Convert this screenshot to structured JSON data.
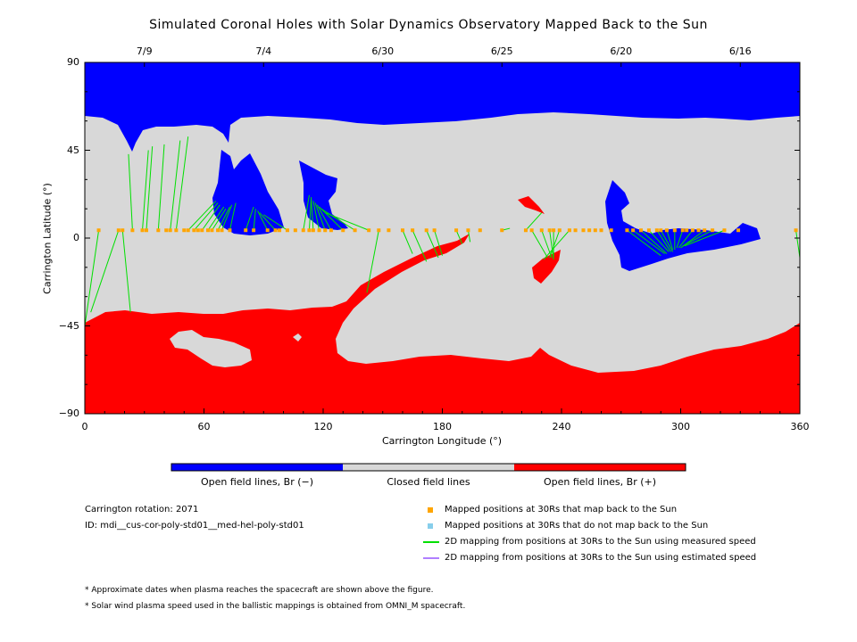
{
  "chart_data": {
    "type": "map",
    "title": "Simulated Coronal Holes with Solar Dynamics Observatory Mapped Back to the Sun",
    "xlabel": "Carrington Longitude (°)",
    "ylabel": "Carrington Latitude (°)",
    "xlim": [
      0,
      360
    ],
    "ylim": [
      -90,
      90
    ],
    "x_ticks": [
      "0",
      "60",
      "120",
      "180",
      "240",
      "300",
      "360"
    ],
    "y_ticks": [
      "90",
      "45",
      "0",
      "-45",
      "-90"
    ],
    "top_date_labels": [
      {
        "label": "7/9",
        "longitude": 30
      },
      {
        "label": "7/4",
        "longitude": 90
      },
      {
        "label": "6/30",
        "longitude": 150
      },
      {
        "label": "6/25",
        "longitude": 210
      },
      {
        "label": "6/20",
        "longitude": 270
      },
      {
        "label": "6/16",
        "longitude": 330
      }
    ],
    "colors": {
      "open_negative": "#0000ff",
      "closed": "#d8d8d8",
      "open_positive": "#ff0000",
      "mapped_point": "#ffa500",
      "unmapped_point": "#87ceeb",
      "measured_line": "#00e000",
      "estimated_line": "#b07fff"
    },
    "mapped_positions_lon": [
      7,
      17,
      19,
      24,
      29,
      31,
      37,
      41,
      43,
      46,
      50,
      52,
      55,
      57,
      59,
      62,
      64,
      67,
      69,
      73,
      81,
      85,
      92,
      96,
      98,
      102,
      106,
      110,
      113,
      115,
      118,
      121,
      124,
      130,
      136,
      143,
      148,
      153,
      160,
      165,
      172,
      176,
      187,
      193,
      199,
      210,
      222,
      225,
      230,
      234,
      236,
      239,
      244,
      247,
      251,
      254,
      257,
      260,
      265,
      273,
      276,
      280,
      284,
      288,
      290,
      293,
      297,
      301,
      303,
      306,
      309,
      312,
      316,
      322,
      329,
      358
    ],
    "mapped_positions_lat": 4,
    "field_line_links": [
      {
        "from": 7,
        "to": [
          0,
          -45
        ]
      },
      {
        "from": 17,
        "to": [
          3,
          -38
        ]
      },
      {
        "from": 19,
        "to": [
          23,
          -38
        ]
      },
      {
        "from": 24,
        "to": [
          22,
          43
        ]
      },
      {
        "from": 29,
        "to": [
          32,
          45
        ]
      },
      {
        "from": 31,
        "to": [
          34,
          47
        ]
      },
      {
        "from": 37,
        "to": [
          40,
          48
        ]
      },
      {
        "from": 43,
        "to": [
          48,
          50
        ]
      },
      {
        "from": 46,
        "to": [
          52,
          52
        ]
      },
      {
        "from": 52,
        "to": [
          66,
          19
        ]
      },
      {
        "from": 55,
        "to": [
          67,
          18
        ]
      },
      {
        "from": 59,
        "to": [
          68,
          17
        ]
      },
      {
        "from": 62,
        "to": [
          70,
          16
        ]
      },
      {
        "from": 64,
        "to": [
          71,
          15
        ]
      },
      {
        "from": 67,
        "to": [
          73,
          16
        ]
      },
      {
        "from": 69,
        "to": [
          74,
          17
        ]
      },
      {
        "from": 73,
        "to": [
          76,
          18
        ]
      },
      {
        "from": 81,
        "to": [
          85,
          16
        ]
      },
      {
        "from": 85,
        "to": [
          86,
          15
        ]
      },
      {
        "from": 92,
        "to": [
          87,
          14
        ]
      },
      {
        "from": 96,
        "to": [
          88,
          13
        ]
      },
      {
        "from": 102,
        "to": [
          90,
          12
        ]
      },
      {
        "from": 110,
        "to": [
          113,
          22
        ]
      },
      {
        "from": 113,
        "to": [
          114,
          21
        ]
      },
      {
        "from": 115,
        "to": [
          114,
          20
        ]
      },
      {
        "from": 118,
        "to": [
          115,
          19
        ]
      },
      {
        "from": 121,
        "to": [
          116,
          18
        ]
      },
      {
        "from": 124,
        "to": [
          117,
          17
        ]
      },
      {
        "from": 130,
        "to": [
          118,
          16
        ]
      },
      {
        "from": 136,
        "to": [
          119,
          15
        ]
      },
      {
        "from": 143,
        "to": [
          121,
          13
        ]
      },
      {
        "from": 148,
        "to": [
          142,
          -28
        ]
      },
      {
        "from": 160,
        "to": [
          165,
          -8
        ]
      },
      {
        "from": 165,
        "to": [
          172,
          -12
        ]
      },
      {
        "from": 172,
        "to": [
          178,
          -10
        ]
      },
      {
        "from": 176,
        "to": [
          180,
          -9
        ]
      },
      {
        "from": 187,
        "to": [
          190,
          -3
        ]
      },
      {
        "from": 193,
        "to": [
          194,
          -2
        ]
      },
      {
        "from": 210,
        "to": [
          214,
          5
        ]
      },
      {
        "from": 222,
        "to": [
          230,
          13
        ]
      },
      {
        "from": 225,
        "to": [
          233,
          -10
        ]
      },
      {
        "from": 230,
        "to": [
          235,
          -10
        ]
      },
      {
        "from": 234,
        "to": [
          236,
          -11
        ]
      },
      {
        "from": 236,
        "to": [
          236,
          -10
        ]
      },
      {
        "from": 239,
        "to": [
          234,
          -10
        ]
      },
      {
        "from": 244,
        "to": [
          231,
          -11
        ]
      },
      {
        "from": 273,
        "to": [
          290,
          -9
        ]
      },
      {
        "from": 276,
        "to": [
          292,
          -8
        ]
      },
      {
        "from": 280,
        "to": [
          293,
          -8
        ]
      },
      {
        "from": 284,
        "to": [
          294,
          -7
        ]
      },
      {
        "from": 288,
        "to": [
          295,
          -7
        ]
      },
      {
        "from": 290,
        "to": [
          296,
          -7
        ]
      },
      {
        "from": 293,
        "to": [
          296,
          -6
        ]
      },
      {
        "from": 297,
        "to": [
          297,
          -6
        ]
      },
      {
        "from": 301,
        "to": [
          298,
          -5
        ]
      },
      {
        "from": 306,
        "to": [
          299,
          -5
        ]
      },
      {
        "from": 312,
        "to": [
          300,
          -5
        ]
      },
      {
        "from": 316,
        "to": [
          301,
          -4
        ]
      },
      {
        "from": 322,
        "to": [
          302,
          -4
        ]
      },
      {
        "from": 358,
        "to": [
          360,
          -10
        ]
      }
    ]
  },
  "colorbar": {
    "labels": [
      "Open field lines, Br (−)",
      "Closed field lines",
      "Open field lines, Br (+)"
    ]
  },
  "info": {
    "rotation": "Carrington rotation: 2071",
    "id": "ID: mdi__cus-cor-poly-std01__med-hel-poly-std01"
  },
  "legend": {
    "items": [
      {
        "label": "Mapped positions at 30Rs that map back to the Sun",
        "marker": "square",
        "color": "#ffa500"
      },
      {
        "label": "Mapped positions at 30Rs that do not map back to the Sun",
        "marker": "square",
        "color": "#87ceeb"
      },
      {
        "label": "2D mapping from positions at 30Rs to the Sun using measured speed",
        "marker": "line",
        "color": "#00e000"
      },
      {
        "label": "2D mapping from positions at 30Rs to the Sun using estimated speed",
        "marker": "line",
        "color": "#b07fff"
      }
    ]
  },
  "notes": [
    "* Approximate dates when plasma reaches the spacecraft are shown above the figure.",
    "* Solar wind plasma speed used in the ballistic mappings is obtained from OMNI_M spacecraft."
  ]
}
